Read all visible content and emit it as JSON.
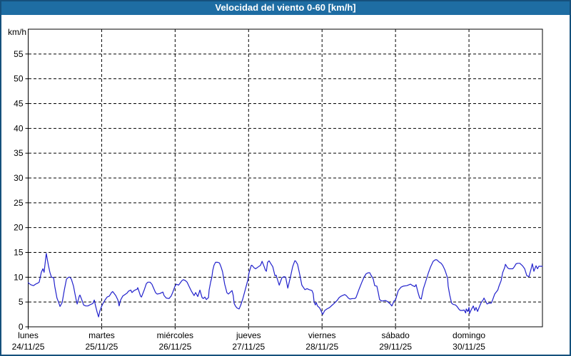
{
  "header": {
    "title": "Velocidad del viento 0-60 [km/h]"
  },
  "colors": {
    "titlebar_bg": "#1e6da3",
    "panel_border": "#15507c",
    "line": "#2222cc",
    "grid": "#000000",
    "axis_text": "#000000",
    "plot_bg": "#ffffff"
  },
  "chart_data": {
    "type": "line",
    "title": "Velocidad del viento 0-60 [km/h]",
    "ylabel": "km/h",
    "xlabel": "",
    "ylim": [
      0,
      60
    ],
    "yticks": [
      0,
      5,
      10,
      15,
      20,
      25,
      30,
      35,
      40,
      45,
      50,
      55
    ],
    "grid": "dashed",
    "legend": "none",
    "x_axis_unit": "hours (7 days, 24 h per labeled tick)",
    "xlim_hours": [
      0,
      168
    ],
    "x_day_ticks": [
      {
        "day": "lunes",
        "date": "24/11/25",
        "hour": 0
      },
      {
        "day": "martes",
        "date": "25/11/25",
        "hour": 24
      },
      {
        "day": "miércoles",
        "date": "26/11/25",
        "hour": 48
      },
      {
        "day": "jueves",
        "date": "27/11/25",
        "hour": 72
      },
      {
        "day": "viernes",
        "date": "28/11/25",
        "hour": 96
      },
      {
        "day": "sábado",
        "date": "29/11/25",
        "hour": 120
      },
      {
        "day": "domingo",
        "date": "30/11/25",
        "hour": 144
      }
    ],
    "series": [
      {
        "name": "velocidad del viento",
        "unit": "km/h",
        "color": "#2222cc",
        "points": [
          [
            0,
            8.9
          ],
          [
            0.8,
            8.5
          ],
          [
            1.7,
            8.3
          ],
          [
            2.4,
            8.6
          ],
          [
            3.1,
            8.8
          ],
          [
            3.6,
            9.0
          ],
          [
            4.3,
            11.0
          ],
          [
            4.8,
            11.7
          ],
          [
            5.2,
            11.0
          ],
          [
            5.9,
            14.8
          ],
          [
            6.6,
            12.4
          ],
          [
            7.1,
            11.0
          ],
          [
            7.6,
            10.0
          ],
          [
            8.3,
            9.9
          ],
          [
            8.7,
            8.1
          ],
          [
            9.4,
            5.8
          ],
          [
            9.9,
            5.0
          ],
          [
            10.4,
            4.1
          ],
          [
            11.1,
            4.9
          ],
          [
            11.8,
            7.4
          ],
          [
            12.5,
            9.6
          ],
          [
            13.2,
            10.0
          ],
          [
            13.6,
            10.0
          ],
          [
            14.1,
            9.6
          ],
          [
            14.8,
            8.2
          ],
          [
            15.3,
            6.6
          ],
          [
            15.7,
            5.4
          ],
          [
            16,
            4.6
          ],
          [
            16.7,
            6.2
          ],
          [
            16.9,
            6.4
          ],
          [
            17.6,
            5.3
          ],
          [
            18.1,
            4.4
          ],
          [
            18.8,
            4.2
          ],
          [
            19.5,
            4.2
          ],
          [
            20.4,
            4.5
          ],
          [
            21.1,
            4.7
          ],
          [
            21.6,
            5.4
          ],
          [
            22,
            4.2
          ],
          [
            22.5,
            3.0
          ],
          [
            23,
            2.0
          ],
          [
            23.4,
            3.2
          ],
          [
            24.1,
            4.3
          ],
          [
            24.6,
            4.9
          ],
          [
            25.1,
            5.4
          ],
          [
            25.8,
            6.0
          ],
          [
            26.5,
            6.2
          ],
          [
            27.2,
            6.9
          ],
          [
            27.6,
            7.1
          ],
          [
            28.6,
            6.3
          ],
          [
            29.3,
            5.4
          ],
          [
            29.7,
            4.2
          ],
          [
            30.2,
            5.4
          ],
          [
            30.9,
            6.2
          ],
          [
            31.6,
            6.5
          ],
          [
            32.3,
            6.8
          ],
          [
            32.8,
            7.2
          ],
          [
            33.5,
            7.4
          ],
          [
            33.9,
            6.9
          ],
          [
            34.6,
            7.3
          ],
          [
            35.6,
            7.6
          ],
          [
            35.8,
            7.9
          ],
          [
            36.7,
            6.2
          ],
          [
            37,
            6.0
          ],
          [
            37.9,
            7.4
          ],
          [
            38.6,
            8.7
          ],
          [
            39.1,
            9.0
          ],
          [
            39.8,
            9.0
          ],
          [
            40.4,
            8.6
          ],
          [
            40.9,
            7.9
          ],
          [
            41.6,
            6.9
          ],
          [
            42.1,
            6.6
          ],
          [
            43,
            6.7
          ],
          [
            44,
            7.0
          ],
          [
            44.4,
            6.3
          ],
          [
            45.1,
            5.8
          ],
          [
            46,
            5.7
          ],
          [
            46.7,
            6.2
          ],
          [
            47.2,
            6.9
          ],
          [
            47.9,
            8.1
          ],
          [
            48.4,
            8.6
          ],
          [
            49.1,
            8.4
          ],
          [
            49.5,
            8.7
          ],
          [
            50.2,
            9.3
          ],
          [
            50.7,
            9.5
          ],
          [
            51.4,
            9.3
          ],
          [
            51.9,
            9.0
          ],
          [
            52.6,
            8.1
          ],
          [
            53.3,
            7.2
          ],
          [
            54.2,
            6.3
          ],
          [
            54.7,
            6.9
          ],
          [
            55.4,
            6.1
          ],
          [
            56.1,
            7.4
          ],
          [
            56.8,
            5.9
          ],
          [
            57.2,
            5.7
          ],
          [
            57.7,
            6.0
          ],
          [
            58.2,
            5.5
          ],
          [
            58.9,
            5.9
          ],
          [
            59.1,
            7.4
          ],
          [
            59.6,
            9.0
          ],
          [
            60,
            10.0
          ],
          [
            60.3,
            11.4
          ],
          [
            60.7,
            12.4
          ],
          [
            61.2,
            13.0
          ],
          [
            61.9,
            13.0
          ],
          [
            62.4,
            12.9
          ],
          [
            62.6,
            12.7
          ],
          [
            63.1,
            11.9
          ],
          [
            63.5,
            11.1
          ],
          [
            63.8,
            10.0
          ],
          [
            64.2,
            8.6
          ],
          [
            64.7,
            7.4
          ],
          [
            64.9,
            6.9
          ],
          [
            65.4,
            6.6
          ],
          [
            65.9,
            6.9
          ],
          [
            66.6,
            7.3
          ],
          [
            67,
            6.3
          ],
          [
            67.3,
            4.7
          ],
          [
            67.7,
            4.2
          ],
          [
            68.2,
            3.8
          ],
          [
            68.9,
            3.6
          ],
          [
            69.4,
            4.3
          ],
          [
            70.1,
            5.6
          ],
          [
            70.8,
            7.2
          ],
          [
            71.7,
            9.3
          ],
          [
            72.2,
            11.0
          ],
          [
            72.9,
            12.4
          ],
          [
            73.1,
            12.4
          ],
          [
            73.8,
            11.9
          ],
          [
            74.3,
            11.7
          ],
          [
            75.2,
            12.1
          ],
          [
            75.9,
            12.4
          ],
          [
            76.4,
            13.2
          ],
          [
            77.1,
            12.1
          ],
          [
            77.5,
            11.4
          ],
          [
            77.8,
            11.2
          ],
          [
            78.2,
            13.0
          ],
          [
            78.7,
            13.3
          ],
          [
            79.4,
            12.6
          ],
          [
            79.9,
            12.1
          ],
          [
            80.6,
            10.3
          ],
          [
            81,
            10.4
          ],
          [
            82,
            8.4
          ],
          [
            82.9,
            9.9
          ],
          [
            83.6,
            10.1
          ],
          [
            84.1,
            10.0
          ],
          [
            84.8,
            7.8
          ],
          [
            85.7,
            10.1
          ],
          [
            86.4,
            12.1
          ],
          [
            87.1,
            13.3
          ],
          [
            87.3,
            13.3
          ],
          [
            88,
            12.6
          ],
          [
            88.7,
            10.6
          ],
          [
            89.4,
            8.4
          ],
          [
            90.4,
            7.5
          ],
          [
            91.1,
            7.7
          ],
          [
            91.8,
            7.5
          ],
          [
            92.7,
            7.3
          ],
          [
            93.1,
            6.7
          ],
          [
            93.4,
            5.0
          ],
          [
            93.8,
            4.4
          ],
          [
            94.1,
            4.9
          ],
          [
            94.5,
            4.2
          ],
          [
            95.2,
            3.8
          ],
          [
            95.7,
            3.2
          ],
          [
            96.2,
            2.5
          ],
          [
            96.9,
            3.3
          ],
          [
            97.6,
            3.6
          ],
          [
            98.5,
            3.9
          ],
          [
            99.2,
            4.3
          ],
          [
            99.9,
            4.7
          ],
          [
            100.9,
            5.3
          ],
          [
            101.6,
            5.9
          ],
          [
            102.3,
            6.2
          ],
          [
            103.4,
            6.5
          ],
          [
            103.9,
            6.3
          ],
          [
            104.6,
            5.8
          ],
          [
            105.1,
            5.6
          ],
          [
            106,
            5.7
          ],
          [
            106.7,
            5.7
          ],
          [
            107.1,
            5.9
          ],
          [
            108.1,
            7.6
          ],
          [
            109,
            9.0
          ],
          [
            109.7,
            10.0
          ],
          [
            110.4,
            10.7
          ],
          [
            111.1,
            10.9
          ],
          [
            111.6,
            10.9
          ],
          [
            112,
            10.4
          ],
          [
            112.7,
            9.7
          ],
          [
            113.2,
            8.3
          ],
          [
            113.9,
            8.2
          ],
          [
            114.4,
            6.8
          ],
          [
            114.8,
            5.5
          ],
          [
            115.5,
            5.2
          ],
          [
            116.7,
            5.3
          ],
          [
            117.4,
            5.1
          ],
          [
            118.3,
            4.6
          ],
          [
            118.8,
            4.2
          ],
          [
            119.5,
            5.2
          ],
          [
            120,
            5.4
          ],
          [
            120.9,
            7.3
          ],
          [
            121.8,
            8.0
          ],
          [
            122.5,
            8.2
          ],
          [
            123.7,
            8.3
          ],
          [
            124.9,
            8.6
          ],
          [
            125.6,
            8.3
          ],
          [
            126.3,
            8.1
          ],
          [
            126.7,
            8.5
          ],
          [
            127.4,
            6.8
          ],
          [
            127.9,
            5.8
          ],
          [
            128.4,
            5.6
          ],
          [
            129.1,
            7.7
          ],
          [
            130,
            9.4
          ],
          [
            130.7,
            10.8
          ],
          [
            131.4,
            12.0
          ],
          [
            132.3,
            13.2
          ],
          [
            133,
            13.5
          ],
          [
            133.5,
            13.5
          ],
          [
            134.2,
            13.1
          ],
          [
            134.9,
            12.8
          ],
          [
            135.4,
            12.4
          ],
          [
            136.1,
            11.5
          ],
          [
            136.5,
            10.8
          ],
          [
            137,
            9.8
          ],
          [
            137.2,
            8.2
          ],
          [
            137.7,
            6.4
          ],
          [
            138.2,
            5.1
          ],
          [
            138.4,
            4.7
          ],
          [
            138.9,
            4.5
          ],
          [
            139.6,
            4.4
          ],
          [
            140.1,
            4.1
          ],
          [
            140.8,
            3.5
          ],
          [
            141.2,
            3.3
          ],
          [
            141.9,
            3.3
          ],
          [
            142.4,
            3.4
          ],
          [
            142.9,
            2.8
          ],
          [
            143.1,
            3.6
          ],
          [
            143.6,
            3.1
          ],
          [
            144,
            3.9
          ],
          [
            144.2,
            2.7
          ],
          [
            144.7,
            3.4
          ],
          [
            145.4,
            4.2
          ],
          [
            145.9,
            3.3
          ],
          [
            146.3,
            3.9
          ],
          [
            146.8,
            3.1
          ],
          [
            147.5,
            4.2
          ],
          [
            148,
            4.9
          ],
          [
            148.7,
            5.5
          ],
          [
            148.9,
            5.8
          ],
          [
            149.9,
            4.6
          ],
          [
            150.6,
            4.8
          ],
          [
            151.3,
            4.8
          ],
          [
            151.7,
            5.4
          ],
          [
            152.4,
            6.6
          ],
          [
            153.4,
            7.4
          ],
          [
            153.8,
            8.2
          ],
          [
            154.5,
            9.3
          ],
          [
            155,
            10.9
          ],
          [
            155.7,
            12.0
          ],
          [
            155.9,
            12.6
          ],
          [
            156.6,
            11.9
          ],
          [
            157.1,
            11.7
          ],
          [
            157.8,
            11.7
          ],
          [
            158.3,
            11.7
          ],
          [
            158.7,
            12.0
          ],
          [
            159.4,
            12.7
          ],
          [
            159.9,
            12.8
          ],
          [
            160.6,
            12.8
          ],
          [
            161.5,
            12.3
          ],
          [
            162.2,
            11.7
          ],
          [
            162.9,
            10.3
          ],
          [
            163.6,
            10.1
          ],
          [
            164.3,
            11.7
          ],
          [
            164.7,
            12.7
          ],
          [
            165.2,
            11.2
          ],
          [
            165.9,
            12.3
          ],
          [
            166.4,
            11.7
          ],
          [
            166.8,
            12.2
          ],
          [
            167.5,
            12.2
          ],
          [
            168,
            12.2
          ]
        ]
      }
    ]
  }
}
